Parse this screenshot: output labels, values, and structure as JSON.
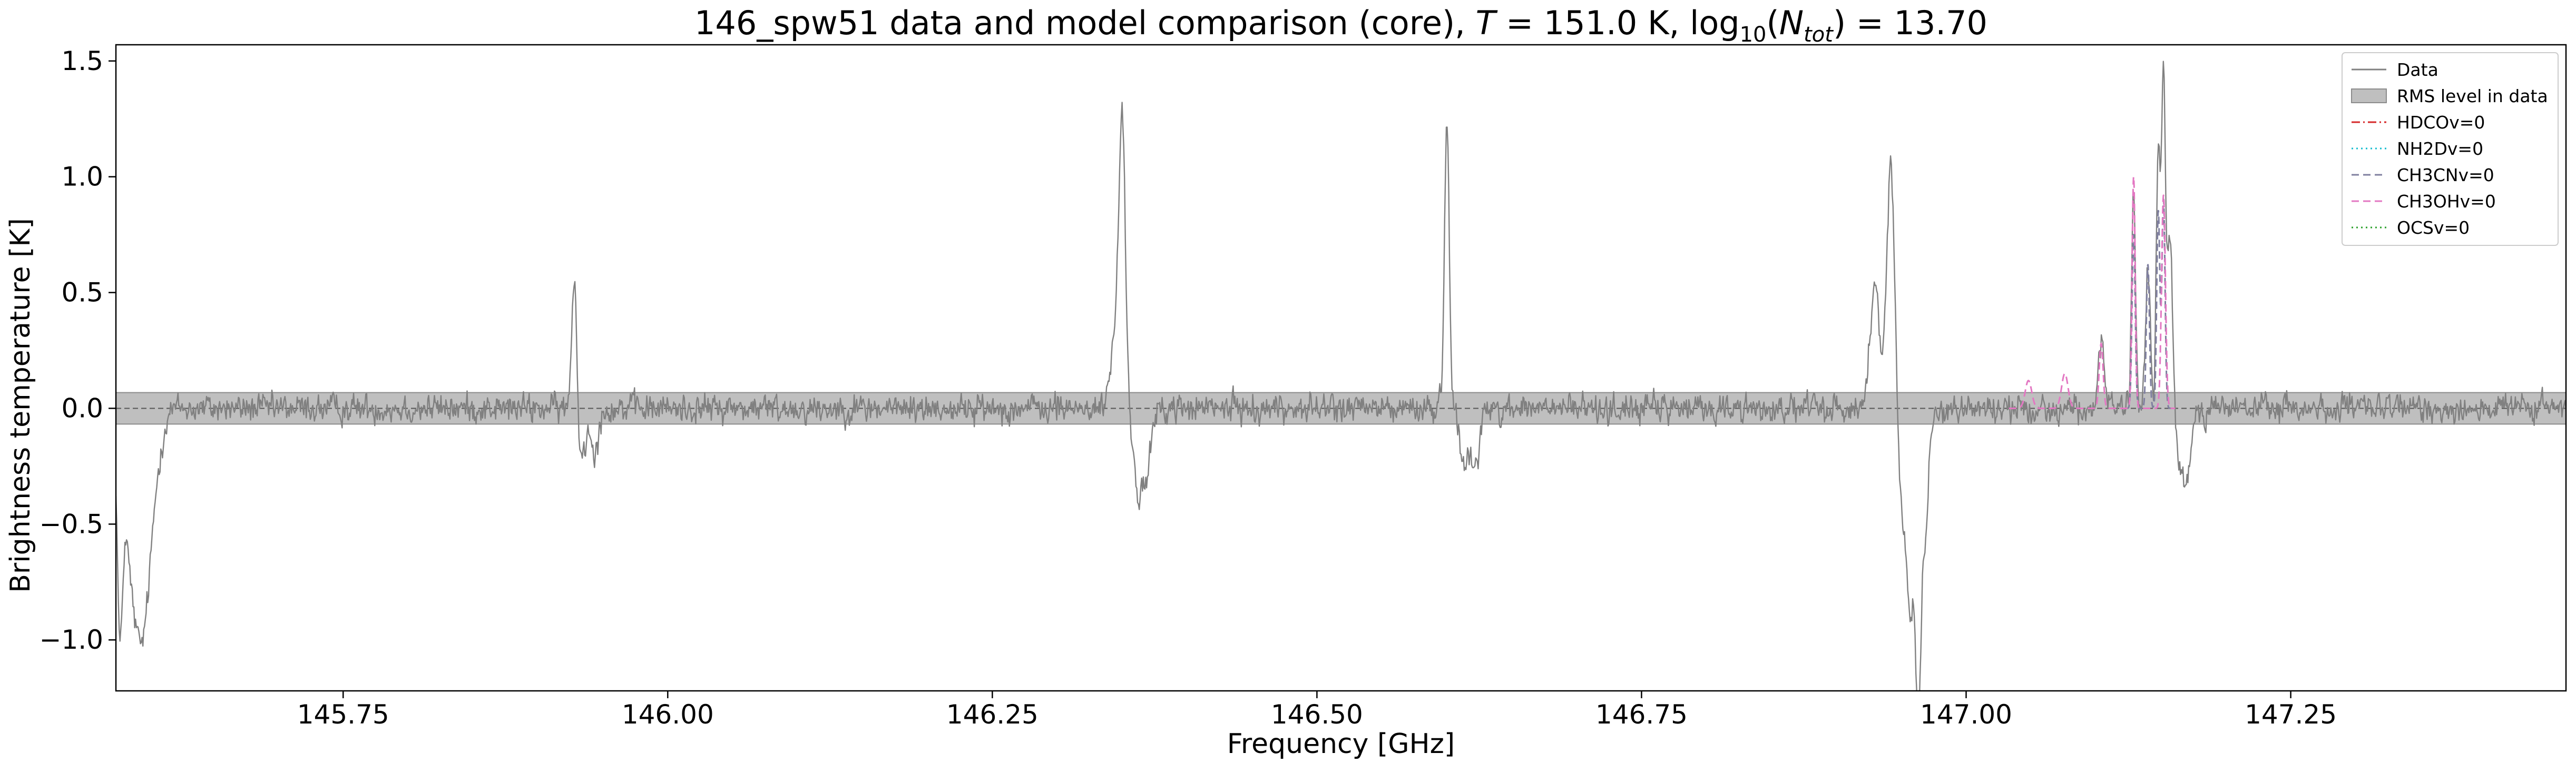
{
  "chart_data": {
    "type": "line",
    "title": {
      "prefix": "146_spw51 data and model comparison (core), ",
      "t_symbol": "T",
      "t_value": " = 151.0 K, log",
      "log_sub": "10",
      "n_symbol": "N",
      "n_sub": "tot",
      "n_value": ") = 13.70"
    },
    "xlabel": "Frequency [GHz]",
    "ylabel": "Brightness temperature [K]",
    "xlim": [
      145.575,
      147.462
    ],
    "ylim": [
      -1.22,
      1.57
    ],
    "x_ticks": [
      145.75,
      146.0,
      146.25,
      146.5,
      146.75,
      147.0,
      147.25
    ],
    "x_tick_labels": [
      "145.75",
      "146.00",
      "146.25",
      "146.50",
      "146.75",
      "147.00",
      "147.25"
    ],
    "y_ticks": [
      -1.0,
      -0.5,
      0.0,
      0.5,
      1.0,
      1.5
    ],
    "y_tick_labels": [
      "−1.0",
      "−0.5",
      "0.0",
      "0.5",
      "1.0",
      "1.5"
    ],
    "rms_level": 0.068,
    "grid": false,
    "legend_position": "top-right",
    "series": [
      {
        "name": "Data",
        "color": "#808080",
        "style": "solid",
        "noise_rms": 0.045,
        "features": [
          {
            "x": 145.578,
            "y": -0.85,
            "width": 0.002
          },
          {
            "x": 145.583,
            "y": -0.35,
            "width": 0.004
          },
          {
            "x": 145.589,
            "y": -0.55,
            "width": 0.004
          },
          {
            "x": 145.595,
            "y": -0.68,
            "width": 0.004
          },
          {
            "x": 145.601,
            "y": -0.45,
            "width": 0.004
          },
          {
            "x": 145.608,
            "y": -0.15,
            "width": 0.004
          },
          {
            "x": 145.928,
            "y": 0.6,
            "width": 0.0018
          },
          {
            "x": 145.934,
            "y": -0.2,
            "width": 0.003
          },
          {
            "x": 145.944,
            "y": -0.17,
            "width": 0.003
          },
          {
            "x": 146.35,
            "y": 1.22,
            "width": 0.0025
          },
          {
            "x": 146.344,
            "y": 0.3,
            "width": 0.003
          },
          {
            "x": 146.362,
            "y": -0.38,
            "width": 0.003
          },
          {
            "x": 146.369,
            "y": -0.3,
            "width": 0.003
          },
          {
            "x": 146.6,
            "y": 1.28,
            "width": 0.0018
          },
          {
            "x": 146.613,
            "y": -0.22,
            "width": 0.003
          },
          {
            "x": 146.622,
            "y": -0.28,
            "width": 0.003
          },
          {
            "x": 146.93,
            "y": 0.5,
            "width": 0.004
          },
          {
            "x": 146.942,
            "y": 1.05,
            "width": 0.003
          },
          {
            "x": 146.95,
            "y": -0.4,
            "width": 0.003
          },
          {
            "x": 146.957,
            "y": -0.82,
            "width": 0.003
          },
          {
            "x": 146.963,
            "y": -1.1,
            "width": 0.002
          },
          {
            "x": 146.968,
            "y": -0.55,
            "width": 0.003
          },
          {
            "x": 147.104,
            "y": 0.28,
            "width": 0.002
          },
          {
            "x": 147.129,
            "y": 0.95,
            "width": 0.0015
          },
          {
            "x": 147.14,
            "y": 0.6,
            "width": 0.0018
          },
          {
            "x": 147.148,
            "y": 1.1,
            "width": 0.0015
          },
          {
            "x": 147.152,
            "y": 1.42,
            "width": 0.0015
          },
          {
            "x": 147.157,
            "y": 0.75,
            "width": 0.002
          },
          {
            "x": 147.164,
            "y": -0.18,
            "width": 0.003
          },
          {
            "x": 147.17,
            "y": -0.3,
            "width": 0.003
          }
        ]
      },
      {
        "name": "HDCOv=0",
        "color": "#d62728",
        "style": "dashdot",
        "features": []
      },
      {
        "name": "NH2Dv=0",
        "color": "#17becf",
        "style": "dotted",
        "features": []
      },
      {
        "name": "CH3CNv=0",
        "color": "#7f7f9f",
        "style": "dashed",
        "features": [
          {
            "x": 147.129,
            "y": 0.75,
            "width": 0.0012
          },
          {
            "x": 147.14,
            "y": 0.62,
            "width": 0.0012
          },
          {
            "x": 147.148,
            "y": 0.85,
            "width": 0.0012
          },
          {
            "x": 147.152,
            "y": 0.9,
            "width": 0.0012
          }
        ]
      },
      {
        "name": "CH3OHv=0",
        "color": "#e377c2",
        "style": "dashed",
        "features": [
          {
            "x": 147.048,
            "y": 0.12,
            "width": 0.0025
          },
          {
            "x": 147.076,
            "y": 0.15,
            "width": 0.0025
          },
          {
            "x": 147.104,
            "y": 0.28,
            "width": 0.0015
          },
          {
            "x": 147.129,
            "y": 1.0,
            "width": 0.0012
          },
          {
            "x": 147.152,
            "y": 0.92,
            "width": 0.0015
          }
        ]
      },
      {
        "name": "OCSv=0",
        "color": "#2ca02c",
        "style": "dotted",
        "features": []
      }
    ],
    "legend": [
      {
        "label": "Data",
        "kind": "line",
        "color": "#808080",
        "style": "solid"
      },
      {
        "label": "RMS level in data",
        "kind": "patch",
        "color": "#bfbfbf",
        "edge": "#8c8c8c"
      },
      {
        "label": "HDCOv=0",
        "kind": "line",
        "color": "#d62728",
        "style": "dashdot"
      },
      {
        "label": "NH2Dv=0",
        "kind": "line",
        "color": "#17becf",
        "style": "dotted"
      },
      {
        "label": "CH3CNv=0",
        "kind": "line",
        "color": "#7f7f9f",
        "style": "dashed"
      },
      {
        "label": "CH3OHv=0",
        "kind": "line",
        "color": "#e377c2",
        "style": "dashed"
      },
      {
        "label": "OCSv=0",
        "kind": "line",
        "color": "#2ca02c",
        "style": "dotted"
      }
    ],
    "colors": {
      "rms_band": "#bfbfbf",
      "rms_edge": "#8c8c8c",
      "zero_line": "#555555",
      "axes": "#000000"
    }
  }
}
